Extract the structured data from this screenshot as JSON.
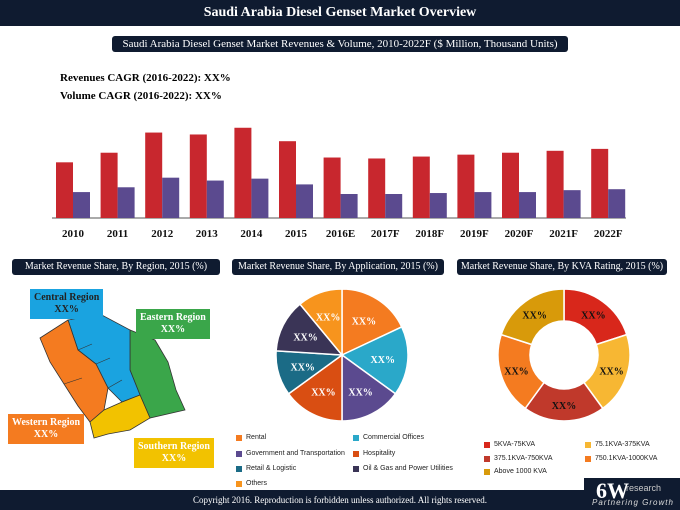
{
  "page_title": "Saudi Arabia Diesel Genset Market Overview",
  "bar_chart_title": "Saudi Arabia Diesel Genset Market Revenues & Volume, 2010-2022F ($ Million, Thousand Units)",
  "cagr": {
    "revenue": "Revenues CAGR (2016-2022): XX%",
    "volume": "Volume CAGR (2016-2022): XX%"
  },
  "panels": {
    "region_title": "Market Revenue Share, By Region, 2015 (%)",
    "application_title": "Market Revenue Share, By Application, 2015 (%)",
    "kva_title": "Market Revenue Share, By KVA Rating, 2015 (%)"
  },
  "regions": [
    {
      "name": "Central Region",
      "value": "XX%",
      "color": "#1aa3e0"
    },
    {
      "name": "Eastern Region",
      "value": "XX%",
      "color": "#3aa64a"
    },
    {
      "name": "Western Region",
      "value": "XX%",
      "color": "#f47b20"
    },
    {
      "name": "Southern Region",
      "value": "XX%",
      "color": "#f2c200"
    }
  ],
  "chart_data": [
    {
      "type": "bar",
      "categories": [
        "2010",
        "2011",
        "2012",
        "2013",
        "2014",
        "2015",
        "2016E",
        "2017F",
        "2018F",
        "2019F",
        "2020F",
        "2021F",
        "2022F"
      ],
      "series": [
        {
          "values": [
            58,
            68,
            89,
            87,
            94,
            80,
            63,
            62,
            64,
            66,
            68,
            70,
            72
          ],
          "color": "#c8272e"
        },
        {
          "values": [
            27,
            32,
            42,
            39,
            41,
            35,
            25,
            25,
            26,
            27,
            27,
            29,
            30
          ],
          "color": "#5b4a8f"
        }
      ]
    },
    {
      "type": "pie",
      "labels": [
        "Rental",
        "Commercial Offices",
        "Government and Transportation",
        "Hospitality",
        "Retail & Logistic",
        "Oil & Gas and Power Utilities",
        "Others"
      ],
      "values": [
        18,
        17,
        15,
        15,
        11,
        13,
        11
      ],
      "slice_labels": [
        "XX%",
        "XX%",
        "XX%",
        "XX%",
        "XX%",
        "XX%",
        "XX%"
      ],
      "colors": [
        "#f47b20",
        "#2aa8c9",
        "#5b4a8f",
        "#d94e12",
        "#1b6b86",
        "#3a3456",
        "#f7941d"
      ]
    },
    {
      "type": "pie",
      "donut": true,
      "labels": [
        "5KVA-75KVA",
        "75.1KVA-375KVA",
        "375.1KVA-750KVA",
        "750.1KVA-1000KVA",
        "Above 1000 KVA"
      ],
      "values": [
        20,
        20,
        20,
        20,
        20
      ],
      "slice_labels": [
        "XX%",
        "XX%",
        "XX%",
        "XX%",
        "XX%"
      ],
      "colors": [
        "#d8271b",
        "#f7b733",
        "#c0392b",
        "#f47b20",
        "#d89a0a"
      ]
    }
  ],
  "footer": {
    "copyright": "Copyright 2016. Reproduction is forbidden unless authorized. All rights reserved.",
    "logo_main": "6W",
    "logo_sub": "research",
    "logo_tag": "Partnering Growth"
  }
}
